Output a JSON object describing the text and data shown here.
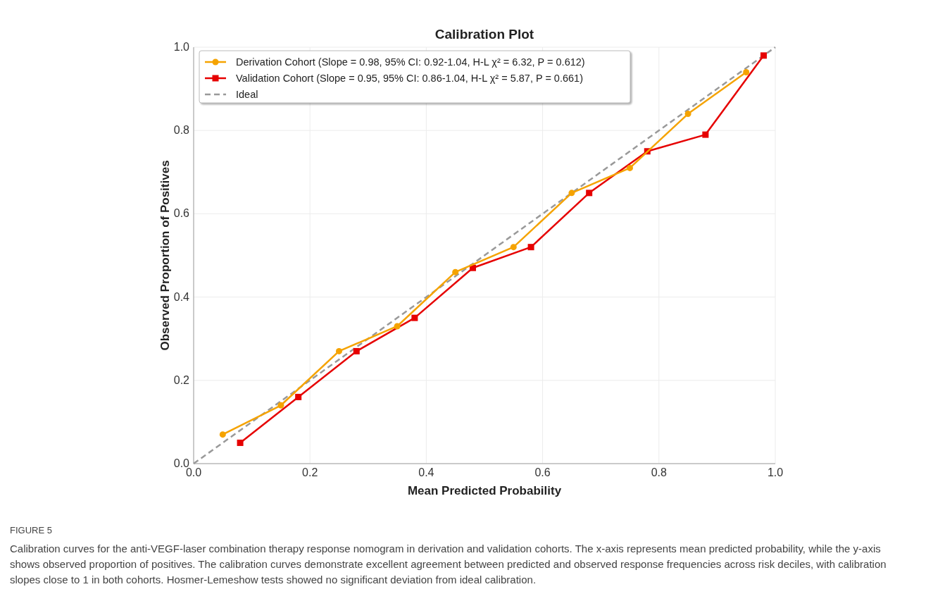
{
  "chart_data": {
    "type": "line",
    "title": "Calibration Plot",
    "xlabel": "Mean Predicted Probability",
    "ylabel": "Observed Proportion of Positives",
    "series": [
      {
        "name": "Derivation Cohort (Slope = 0.98, 95% CI: 0.92-1.04, H-L χ² = 6.32, P = 0.612)",
        "color": "#f5a300",
        "marker": "circle",
        "line_style": "solid",
        "x": [
          0.05,
          0.15,
          0.25,
          0.35,
          0.45,
          0.55,
          0.65,
          0.75,
          0.85,
          0.95
        ],
        "values": [
          0.07,
          0.14,
          0.27,
          0.33,
          0.46,
          0.52,
          0.65,
          0.71,
          0.84,
          0.94
        ]
      },
      {
        "name": "Validation Cohort (Slope = 0.95, 95% CI: 0.86-1.04, H-L χ² = 5.87, P = 0.661)",
        "color": "#e60000",
        "marker": "square",
        "line_style": "solid",
        "x": [
          0.08,
          0.18,
          0.28,
          0.38,
          0.48,
          0.58,
          0.68,
          0.78,
          0.88,
          0.98
        ],
        "values": [
          0.05,
          0.16,
          0.27,
          0.35,
          0.47,
          0.52,
          0.65,
          0.75,
          0.79,
          0.98
        ]
      },
      {
        "name": "Ideal",
        "color": "#999999",
        "marker": "none",
        "line_style": "dashed",
        "x": [
          0,
          1
        ],
        "values": [
          0,
          1
        ]
      }
    ],
    "xlim": [
      0,
      1
    ],
    "ylim": [
      0,
      1
    ],
    "xticks": [
      {
        "value": 0,
        "label": "0.0"
      },
      0.2,
      0.4,
      0.6,
      0.8,
      {
        "value": 1,
        "label": "1.0"
      }
    ],
    "yticks": [
      {
        "value": 0,
        "label": "0.0"
      },
      0.2,
      0.4,
      0.6,
      0.8,
      {
        "value": 1,
        "label": "1.0"
      }
    ],
    "grid": true,
    "legend": "top left",
    "annotations": [
      "FIGURE 5",
      "Calibration curves for the anti-VEGF-laser combination therapy response nomogram in derivation and validation cohorts. The x-axis represents mean predicted probability, while the y-axis shows observed proportion of positives. The calibration curves demonstrate excellent agreement between predicted and observed response frequencies across risk deciles, with calibration slopes close to 1 in both cohorts. Hosmer-Lemeshow tests showed no significant deviation from ideal calibration."
    ]
  }
}
